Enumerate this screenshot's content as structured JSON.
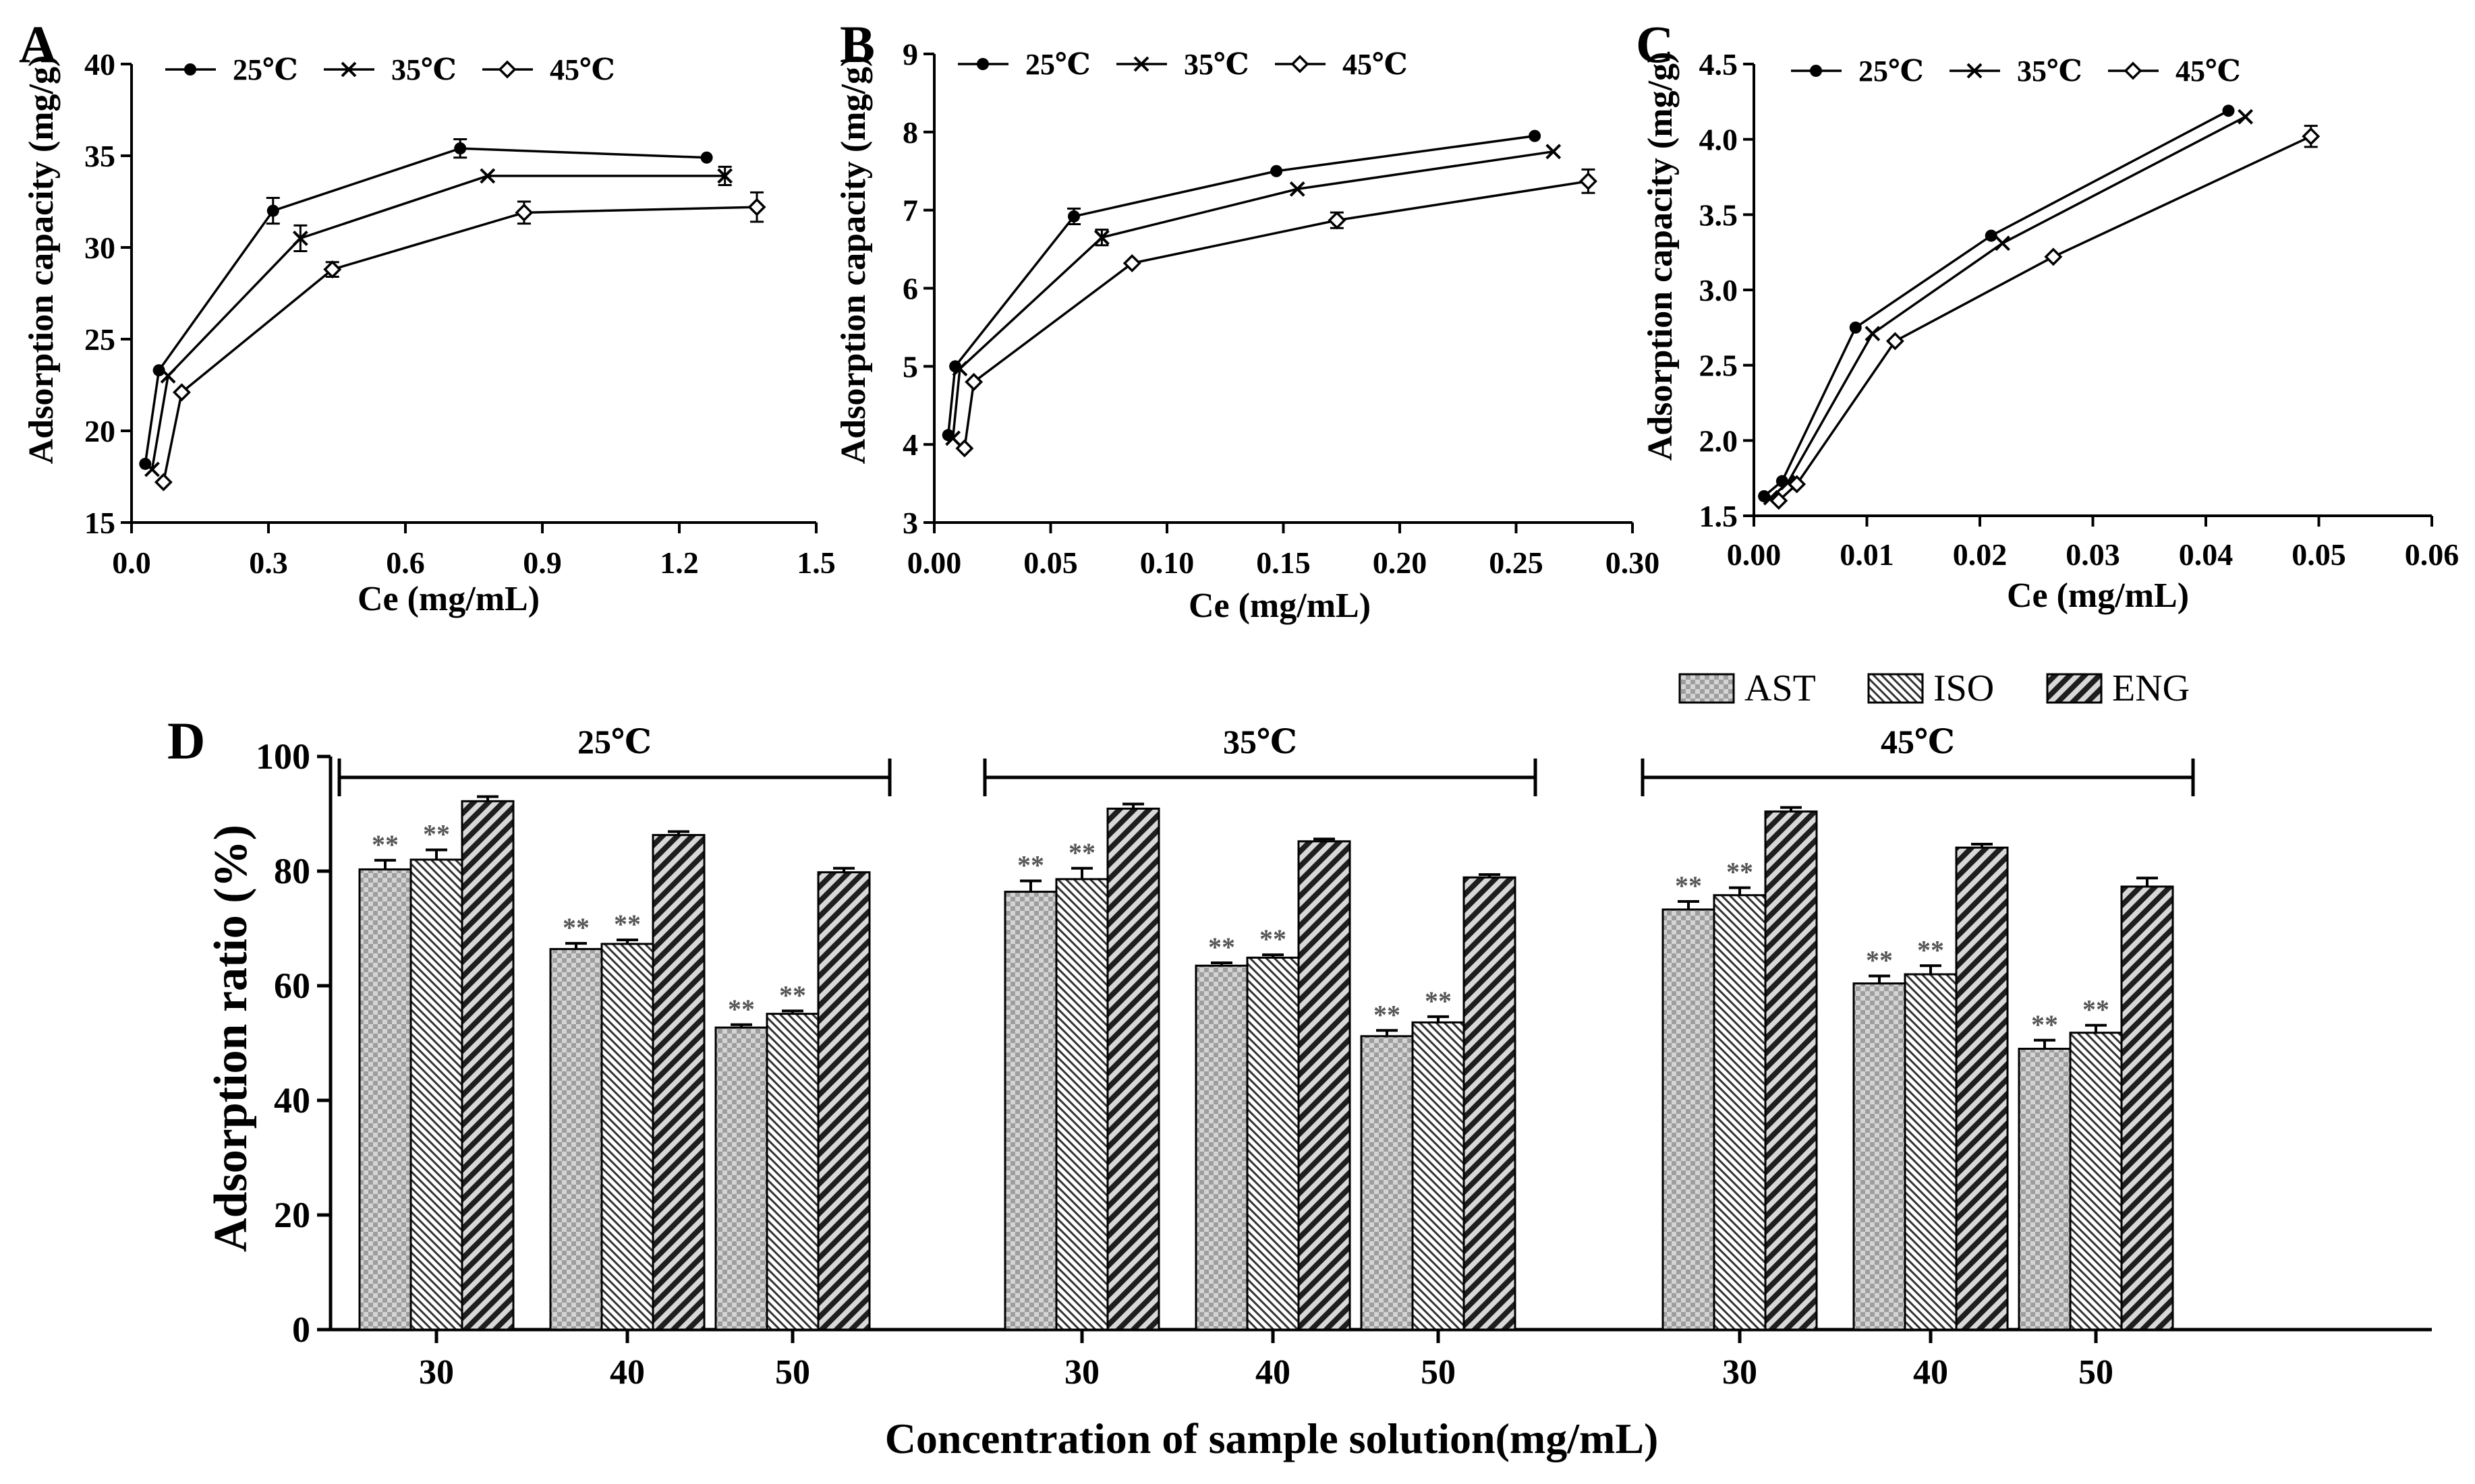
{
  "chart_data": [
    {
      "panel": "A",
      "type": "line",
      "xlabel": "Ce (mg/mL)",
      "ylabel": "Adsorption capacity (mg/g)",
      "xlim": [
        0,
        1.5
      ],
      "ylim": [
        15,
        40
      ],
      "xticks": [
        "0.0",
        "0.3",
        "0.6",
        "0.9",
        "1.2",
        "1.5"
      ],
      "yticks": [
        "15",
        "20",
        "25",
        "30",
        "35",
        "40"
      ],
      "legend": [
        "25℃",
        "35℃",
        "45℃"
      ],
      "series": [
        {
          "name": "25℃",
          "marker": "dot",
          "x": [
            0.03,
            0.06,
            0.31,
            0.72,
            1.26
          ],
          "y": [
            18.2,
            23.3,
            32.0,
            35.4,
            34.9
          ],
          "err": [
            0,
            0,
            0.7,
            0.5,
            0
          ]
        },
        {
          "name": "35℃",
          "marker": "cross",
          "x": [
            0.045,
            0.08,
            0.37,
            0.78,
            1.3
          ],
          "y": [
            17.9,
            23.0,
            30.5,
            33.9,
            33.9
          ],
          "err": [
            0,
            0,
            0.7,
            0,
            0.5
          ]
        },
        {
          "name": "45℃",
          "marker": "diamond",
          "x": [
            0.07,
            0.11,
            0.44,
            0.86,
            1.37
          ],
          "y": [
            17.2,
            22.1,
            28.8,
            31.9,
            32.2
          ],
          "err": [
            0,
            0,
            0.4,
            0.6,
            0.8
          ]
        }
      ]
    },
    {
      "panel": "B",
      "type": "line",
      "xlabel": "Ce (mg/mL)",
      "ylabel": "Adsorption capacity (mg/g)",
      "xlim": [
        0,
        0.3
      ],
      "ylim": [
        3,
        9
      ],
      "xticks": [
        "0.00",
        "0.05",
        "0.10",
        "0.15",
        "0.20",
        "0.25",
        "0.30"
      ],
      "yticks": [
        "3",
        "4",
        "5",
        "6",
        "7",
        "8",
        "9"
      ],
      "legend": [
        "25℃",
        "35℃",
        "45℃"
      ],
      "series": [
        {
          "name": "25℃",
          "marker": "dot",
          "x": [
            0.006,
            0.009,
            0.06,
            0.147,
            0.258
          ],
          "y": [
            4.12,
            5.0,
            6.92,
            7.5,
            7.95
          ],
          "err": [
            0,
            0,
            0.1,
            0,
            0
          ]
        },
        {
          "name": "35℃",
          "marker": "cross",
          "x": [
            0.008,
            0.011,
            0.072,
            0.156,
            0.266
          ],
          "y": [
            4.08,
            4.97,
            6.65,
            7.27,
            7.75
          ],
          "err": [
            0,
            0,
            0.1,
            0,
            0
          ]
        },
        {
          "name": "45℃",
          "marker": "diamond",
          "x": [
            0.013,
            0.017,
            0.085,
            0.173,
            0.281
          ],
          "y": [
            3.95,
            4.8,
            6.32,
            6.87,
            7.37
          ],
          "err": [
            0,
            0,
            0,
            0.1,
            0.15
          ]
        }
      ]
    },
    {
      "panel": "C",
      "type": "line",
      "xlabel": "Ce (mg/mL)",
      "ylabel": "Adsorption capacity (mg/g)",
      "xlim": [
        0,
        0.06
      ],
      "ylim": [
        1.5,
        4.5
      ],
      "xticks": [
        "0.00",
        "0.01",
        "0.02",
        "0.03",
        "0.04",
        "0.05",
        "0.06"
      ],
      "yticks": [
        "1.5",
        "2.0",
        "2.5",
        "3.0",
        "3.5",
        "4.0",
        "4.5"
      ],
      "legend": [
        "25℃",
        "35℃",
        "45℃"
      ],
      "series": [
        {
          "name": "25℃",
          "marker": "dot",
          "x": [
            0.0009,
            0.0025,
            0.009,
            0.021,
            0.042
          ],
          "y": [
            1.63,
            1.73,
            2.75,
            3.36,
            4.19
          ],
          "err": [
            0,
            0,
            0,
            0,
            0
          ]
        },
        {
          "name": "35℃",
          "marker": "cross",
          "x": [
            0.0015,
            0.003,
            0.0105,
            0.022,
            0.0435
          ],
          "y": [
            1.62,
            1.72,
            2.71,
            3.31,
            4.15
          ],
          "err": [
            0,
            0,
            0,
            0,
            0
          ]
        },
        {
          "name": "45℃",
          "marker": "diamond",
          "x": [
            0.0022,
            0.0038,
            0.0125,
            0.0265,
            0.0493
          ],
          "y": [
            1.6,
            1.71,
            2.66,
            3.22,
            4.02
          ],
          "err": [
            0,
            0,
            0,
            0,
            0.07
          ]
        }
      ]
    },
    {
      "panel": "D",
      "type": "bar",
      "xlabel": "Concentration of sample solution(mg/mL)",
      "ylabel": "Adsorption ratio (%)",
      "ylim": [
        0,
        100
      ],
      "yticks": [
        "0",
        "20",
        "40",
        "60",
        "80",
        "100"
      ],
      "legend": [
        "AST",
        "ISO",
        "ENG"
      ],
      "significance": "**",
      "groups": [
        {
          "label": "25℃",
          "categories": [
            "30",
            "40",
            "50"
          ],
          "series": [
            {
              "name": "AST",
              "values": [
                80.3,
                66.4,
                52.7
              ],
              "err": [
                1.6,
                1.0,
                0.5
              ]
            },
            {
              "name": "ISO",
              "values": [
                82.0,
                67.3,
                55.1
              ],
              "err": [
                1.7,
                0.7,
                0.5
              ]
            },
            {
              "name": "ENG",
              "values": [
                92.2,
                86.3,
                79.8
              ],
              "err": [
                0.8,
                0.6,
                0.7
              ]
            }
          ]
        },
        {
          "label": "35℃",
          "categories": [
            "30",
            "40",
            "50"
          ],
          "series": [
            {
              "name": "AST",
              "values": [
                76.4,
                63.5,
                51.2
              ],
              "err": [
                1.9,
                0.5,
                1.0
              ]
            },
            {
              "name": "ISO",
              "values": [
                78.6,
                64.9,
                53.6
              ],
              "err": [
                1.9,
                0.5,
                1.0
              ]
            },
            {
              "name": "ENG",
              "values": [
                90.9,
                85.2,
                78.9
              ],
              "err": [
                0.8,
                0.4,
                0.5
              ]
            }
          ]
        },
        {
          "label": "45℃",
          "categories": [
            "30",
            "40",
            "50"
          ],
          "series": [
            {
              "name": "AST",
              "values": [
                73.3,
                60.4,
                49.0
              ],
              "err": [
                1.4,
                1.3,
                1.5
              ]
            },
            {
              "name": "ISO",
              "values": [
                75.8,
                62.0,
                51.8
              ],
              "err": [
                1.3,
                1.5,
                1.3
              ]
            },
            {
              "name": "ENG",
              "values": [
                90.4,
                84.1,
                77.3
              ],
              "err": [
                0.7,
                0.6,
                1.5
              ]
            }
          ]
        }
      ]
    }
  ]
}
